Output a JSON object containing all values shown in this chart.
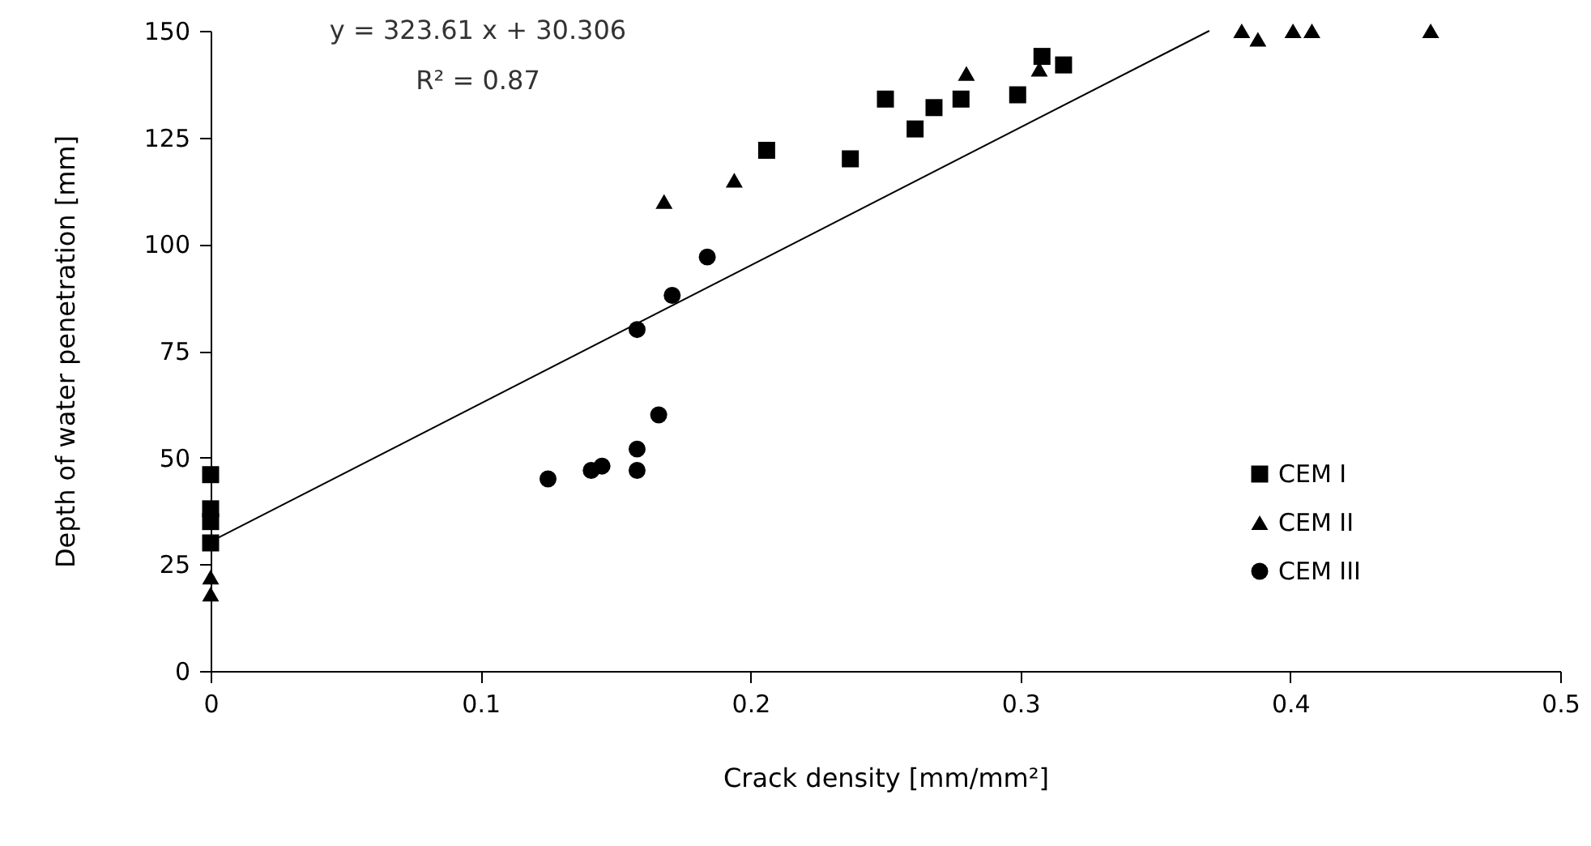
{
  "chart_data": {
    "type": "scatter",
    "xlabel": "Crack density [mm/mm²]",
    "ylabel": "Depth of water penetration [mm]",
    "annotations": [
      "y = 323.61 x + 30.306",
      "R² = 0.87"
    ],
    "xlim": [
      0,
      0.5
    ],
    "xticks": [
      0,
      0.1,
      0.2,
      0.3,
      0.4,
      0.5
    ],
    "ylim": [
      0,
      150
    ],
    "yticks": [
      0,
      25,
      50,
      75,
      100,
      125,
      150
    ],
    "grid": false,
    "legend": "right",
    "series": [
      {
        "name": "CEM I",
        "color": "#000000",
        "marker": "square",
        "x": [
          0,
          0,
          0,
          0,
          0.206,
          0.237,
          0.25,
          0.261,
          0.268,
          0.278,
          0.299,
          0.308,
          0.316
        ],
        "values": [
          46,
          38,
          35,
          30,
          122,
          120,
          134,
          127,
          132,
          134,
          135,
          144,
          142
        ]
      },
      {
        "name": "CEM II",
        "color": "#000000",
        "marker": "triangle",
        "x": [
          0,
          0,
          0.168,
          0.194,
          0.28,
          0.307,
          0.382,
          0.388,
          0.401,
          0.408,
          0.452
        ],
        "values": [
          22,
          18,
          110,
          115,
          140,
          141,
          150,
          148,
          150,
          150,
          150
        ]
      },
      {
        "name": "CEM III",
        "color": "#000000",
        "marker": "circle",
        "x": [
          0.125,
          0.141,
          0.145,
          0.158,
          0.158,
          0.166,
          0.158,
          0.171,
          0.184
        ],
        "values": [
          45,
          47,
          48,
          52,
          47,
          60,
          80,
          88,
          97
        ]
      },
      {
        "type": "line",
        "color": "#000000",
        "x": [
          0,
          0.37
        ],
        "values": [
          30.3,
          150
        ]
      }
    ]
  }
}
